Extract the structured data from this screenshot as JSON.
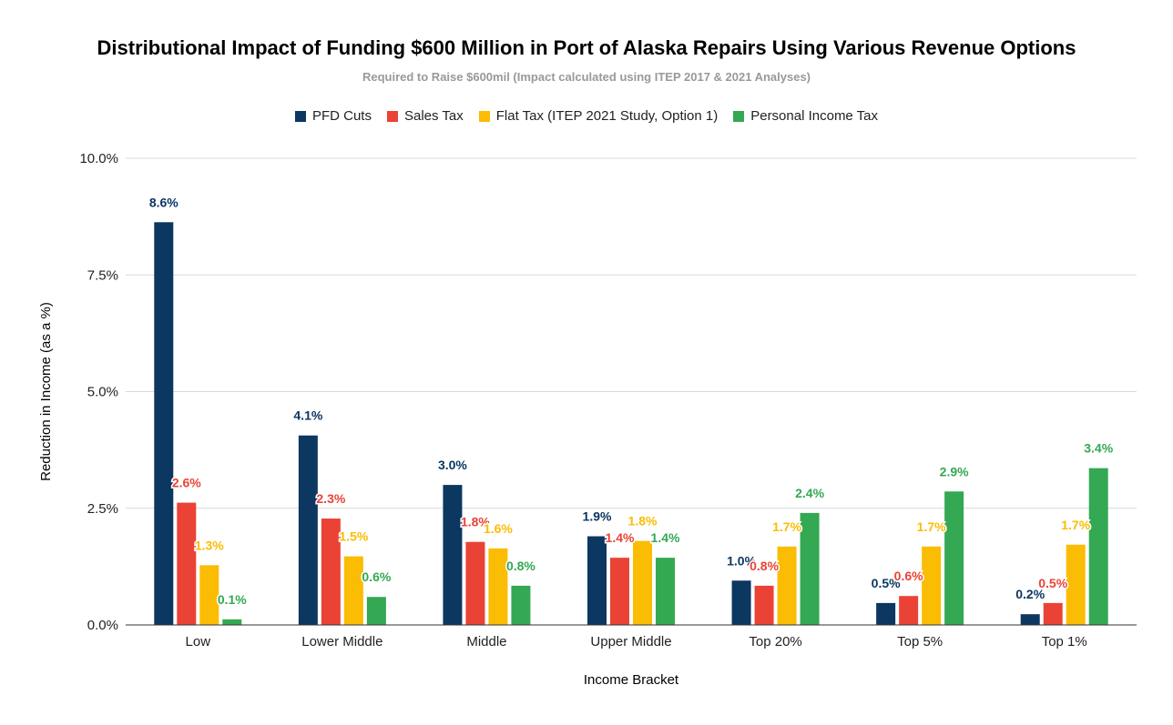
{
  "chart_data": {
    "type": "bar",
    "title": "Distributional Impact of Funding $600 Million in Port of Alaska Repairs Using Various Revenue Options",
    "subtitle": "Required to Raise $600mil (Impact calculated using ITEP 2017 & 2021 Analyses)",
    "xlabel": "Income Bracket",
    "ylabel": "Reduction in Income (as a %)",
    "ylim": [
      0,
      10
    ],
    "yticks": [
      {
        "value": 0,
        "label": "0.0%"
      },
      {
        "value": 2.5,
        "label": "2.5%"
      },
      {
        "value": 5,
        "label": "5.0%"
      },
      {
        "value": 7.5,
        "label": "7.5%"
      },
      {
        "value": 10,
        "label": "10.0%"
      }
    ],
    "grid": true,
    "legend_position": "top",
    "categories": [
      "Low",
      "Lower Middle",
      "Middle",
      "Upper Middle",
      "Top 20%",
      "Top 5%",
      "Top 1%"
    ],
    "series": [
      {
        "name": "PFD Cuts",
        "color": "#0b3761",
        "values": [
          8.63,
          4.06,
          3.0,
          1.9,
          0.95,
          0.47,
          0.23
        ],
        "labels": [
          "8.6%",
          "4.1%",
          "3.0%",
          "1.9%",
          "1.0%",
          "0.5%",
          "0.2%"
        ]
      },
      {
        "name": "Sales Tax",
        "color": "#ea4335",
        "values": [
          2.62,
          2.28,
          1.78,
          1.44,
          0.84,
          0.62,
          0.47
        ],
        "labels": [
          "2.6%",
          "2.3%",
          "1.8%",
          "1.4%",
          "0.8%",
          "0.6%",
          "0.5%"
        ]
      },
      {
        "name": "Flat Tax (ITEP 2021 Study, Option 1)",
        "color": "#fbbc04",
        "values": [
          1.28,
          1.47,
          1.64,
          1.8,
          1.68,
          1.68,
          1.72
        ],
        "labels": [
          "1.3%",
          "1.5%",
          "1.6%",
          "1.8%",
          "1.7%",
          "1.7%",
          "1.7%"
        ]
      },
      {
        "name": "Personal Income Tax",
        "color": "#34a853",
        "values": [
          0.12,
          0.6,
          0.84,
          1.44,
          2.4,
          2.86,
          3.36
        ],
        "labels": [
          "0.1%",
          "0.6%",
          "0.8%",
          "1.4%",
          "2.4%",
          "2.9%",
          "3.4%"
        ]
      }
    ]
  }
}
